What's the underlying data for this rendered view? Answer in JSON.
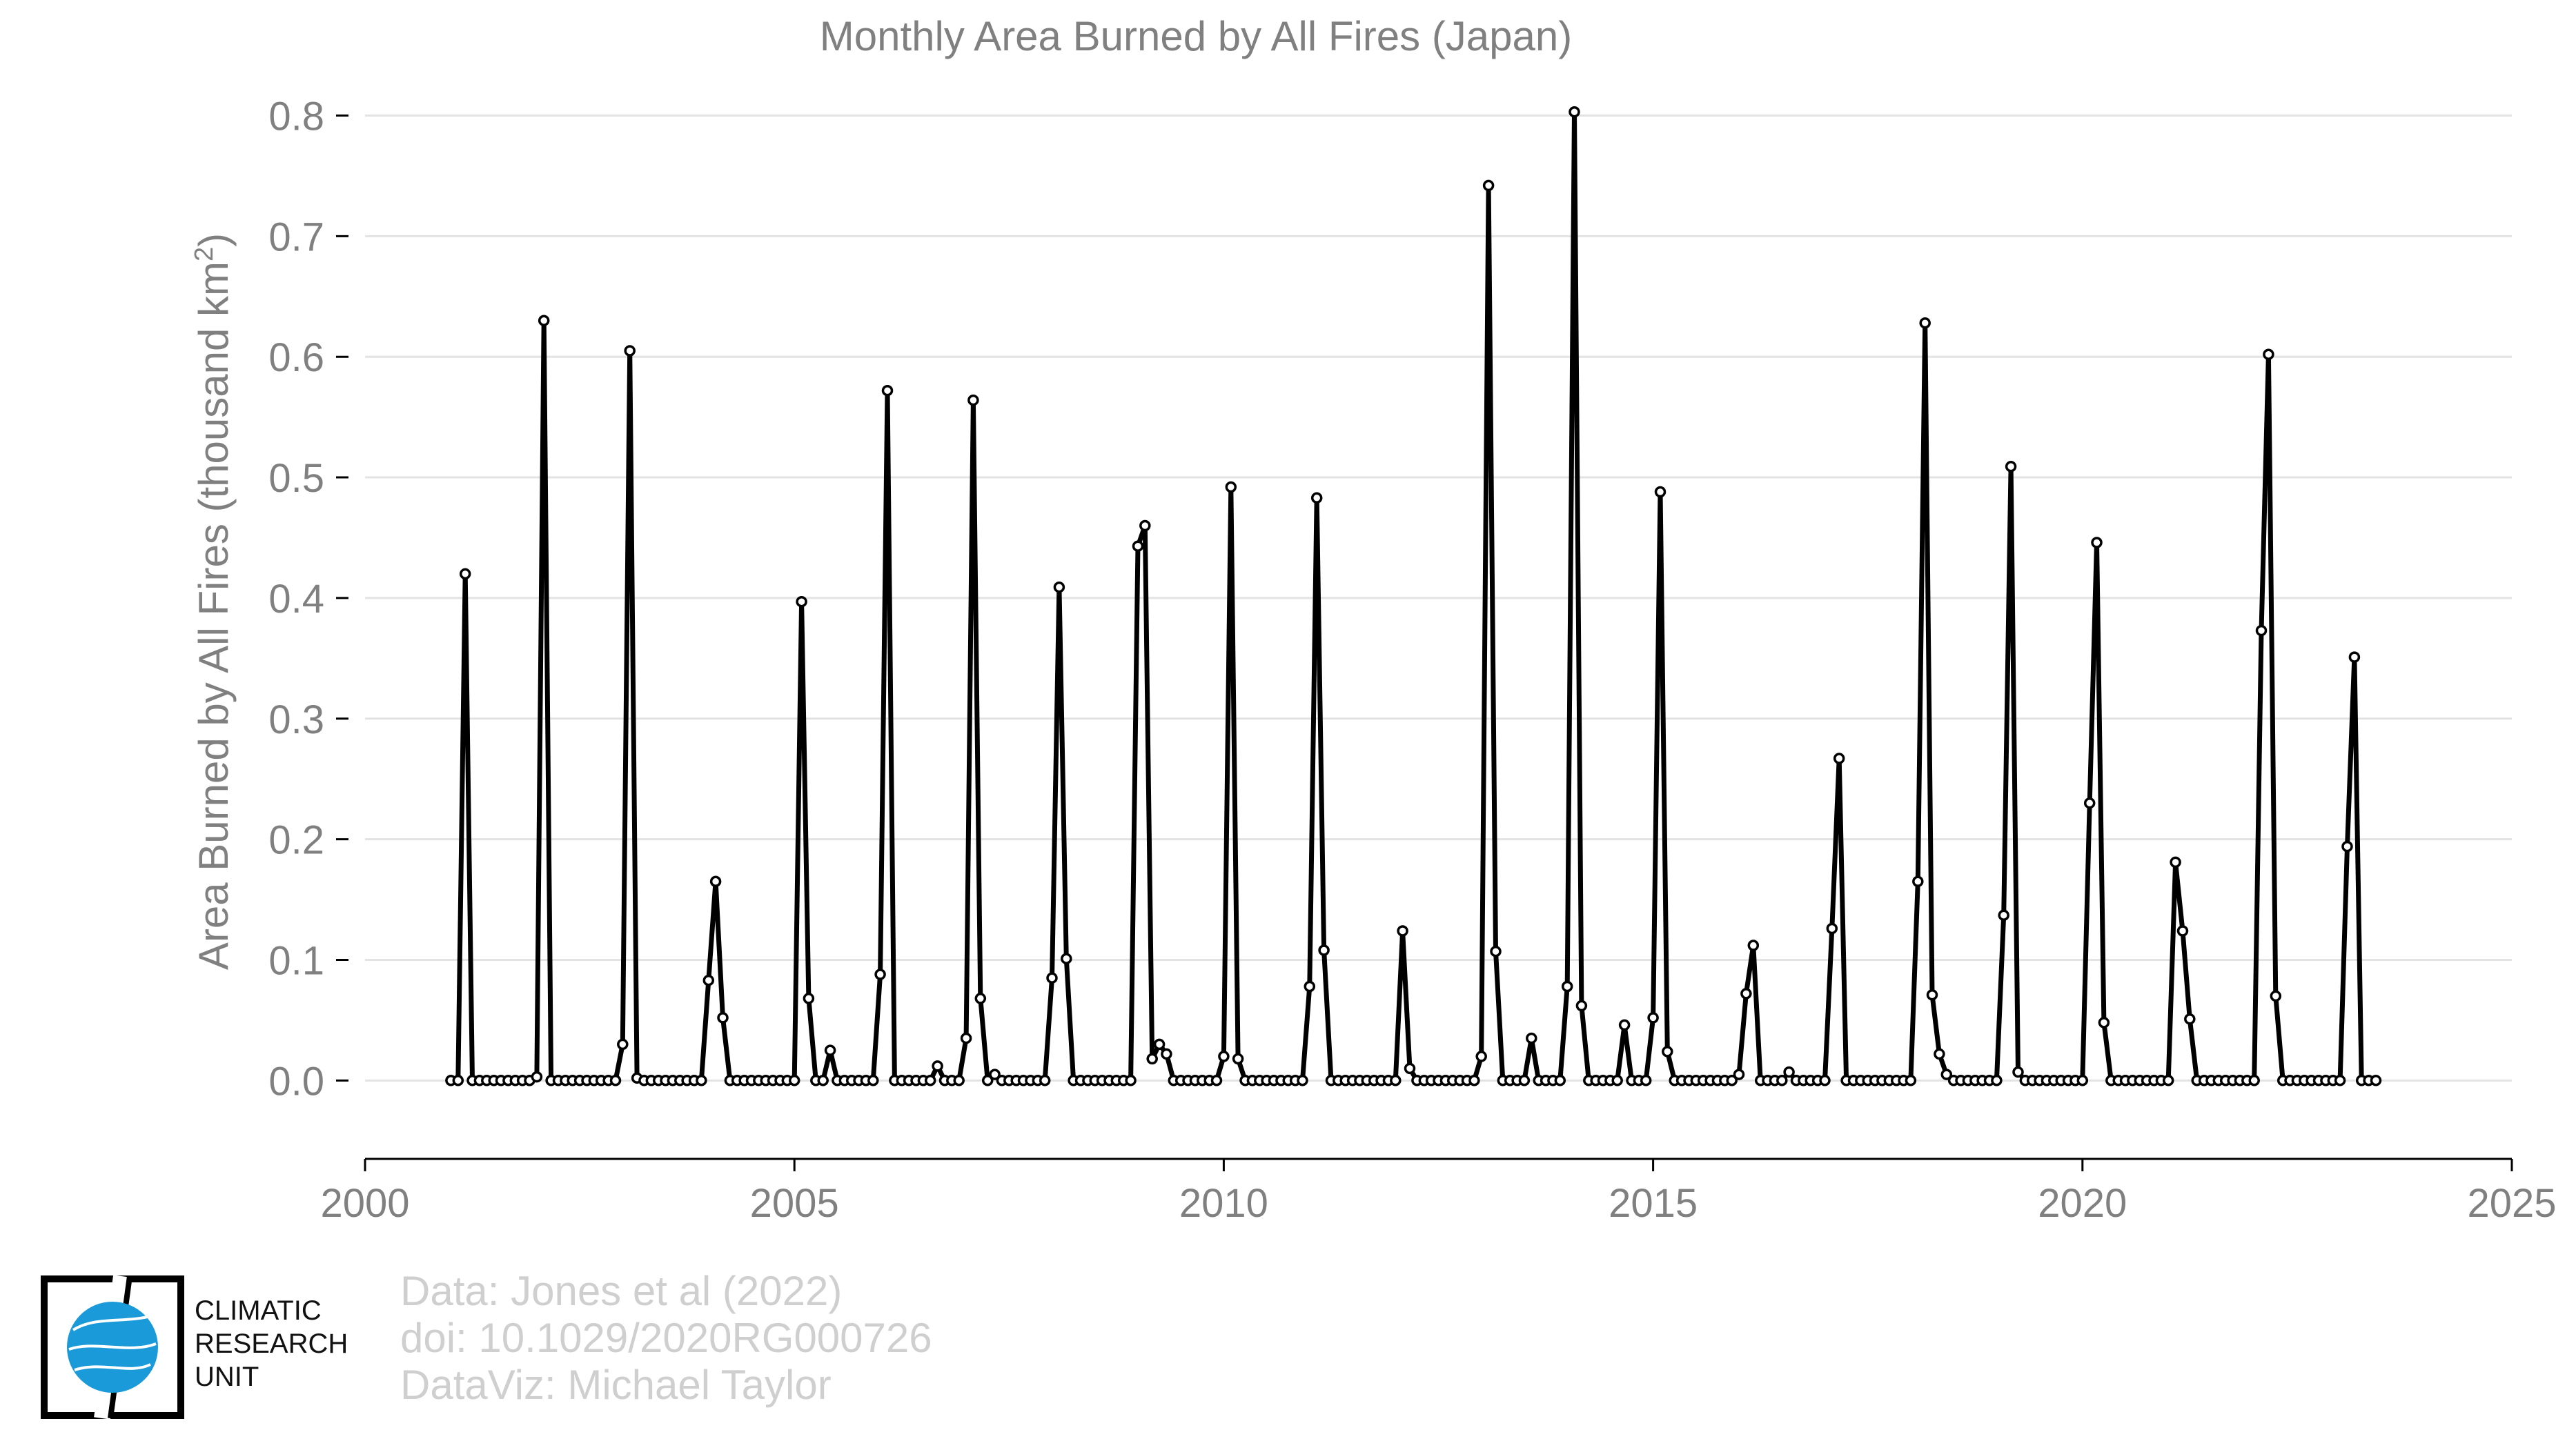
{
  "chart_data": {
    "type": "line",
    "title": "Monthly Area Burned by All Fires (Japan)",
    "xlabel": "",
    "ylabel": "Area Burned by All Fires (thousand km",
    "ylabel_sup": "2",
    "ylabel_close": ")",
    "xlim": [
      2000,
      2025
    ],
    "ylim": [
      -0.065,
      0.81
    ],
    "xticks": [
      2000,
      2005,
      2010,
      2015,
      2020,
      2025
    ],
    "yticks": [
      0.0,
      0.1,
      0.2,
      0.3,
      0.4,
      0.5,
      0.6,
      0.7,
      0.8
    ],
    "ytick_labels": [
      "0.0",
      "0.1",
      "0.2",
      "0.3",
      "0.4",
      "0.5",
      "0.6",
      "0.7",
      "0.8"
    ],
    "grid": "horizontal",
    "start_year": 2001,
    "series": [
      {
        "values": [
          0,
          0,
          0.42,
          0,
          0,
          0,
          0,
          0,
          0,
          0,
          0,
          0,
          0.003,
          0.63,
          0,
          0,
          0,
          0,
          0,
          0,
          0,
          0,
          0,
          0,
          0.03,
          0.605,
          0.002,
          0,
          0,
          0,
          0,
          0,
          0,
          0,
          0,
          0,
          0.083,
          0.165,
          0.052,
          0,
          0,
          0,
          0,
          0,
          0,
          0,
          0,
          0,
          0,
          0.397,
          0.068,
          0,
          0,
          0.025,
          0,
          0,
          0,
          0,
          0,
          0,
          0.088,
          0.572,
          0,
          0,
          0,
          0,
          0,
          0,
          0.012,
          0,
          0,
          0,
          0.035,
          0.564,
          0.068,
          0,
          0.005,
          0,
          0,
          0,
          0,
          0,
          0,
          0,
          0.085,
          0.409,
          0.101,
          0,
          0,
          0,
          0,
          0,
          0,
          0,
          0,
          0,
          0.443,
          0.46,
          0.018,
          0.03,
          0.022,
          0,
          0,
          0,
          0,
          0,
          0,
          0,
          0.02,
          0.492,
          0.018,
          0,
          0,
          0,
          0,
          0,
          0,
          0,
          0,
          0,
          0.078,
          0.483,
          0.108,
          0,
          0,
          0,
          0,
          0,
          0,
          0,
          0,
          0,
          0,
          0.124,
          0.01,
          0,
          0,
          0,
          0,
          0,
          0,
          0,
          0,
          0,
          0.02,
          0.742,
          0.107,
          0,
          0,
          0,
          0,
          0.035,
          0,
          0,
          0,
          0,
          0.078,
          0.803,
          0.062,
          0,
          0,
          0,
          0,
          0,
          0.046,
          0,
          0,
          0,
          0.052,
          0.488,
          0.024,
          0,
          0,
          0,
          0,
          0,
          0,
          0,
          0,
          0,
          0.005,
          0.072,
          0.112,
          0,
          0,
          0,
          0,
          0.007,
          0,
          0,
          0,
          0,
          0,
          0.126,
          0.267,
          0,
          0,
          0,
          0,
          0,
          0,
          0,
          0,
          0,
          0,
          0.165,
          0.628,
          0.071,
          0.022,
          0.005,
          0,
          0,
          0,
          0,
          0,
          0,
          0,
          0.137,
          0.509,
          0.007,
          0,
          0,
          0,
          0,
          0,
          0,
          0,
          0,
          0,
          0.23,
          0.446,
          0.048,
          0,
          0,
          0,
          0,
          0,
          0,
          0,
          0,
          0,
          0.181,
          0.124,
          0.051,
          0,
          0,
          0,
          0,
          0,
          0,
          0,
          0,
          0,
          0.373,
          0.602,
          0.07,
          0,
          0,
          0,
          0,
          0,
          0,
          0,
          0,
          0,
          0.194,
          0.351,
          0,
          0,
          0
        ]
      }
    ]
  },
  "credits": {
    "line1": "Data: Jones et al (2022)",
    "line2": "doi: 10.1029/2020RG000726",
    "line3": "DataViz: Michael Taylor"
  },
  "logo": {
    "line1": "CLIMATIC",
    "line2": "RESEARCH",
    "line3": "UNIT",
    "accent_color": "#1a9ad9"
  },
  "colors": {
    "line": "#000000",
    "marker_fill": "#ffffff",
    "axis_text": "#808080",
    "grid": "#e3e3e3"
  }
}
